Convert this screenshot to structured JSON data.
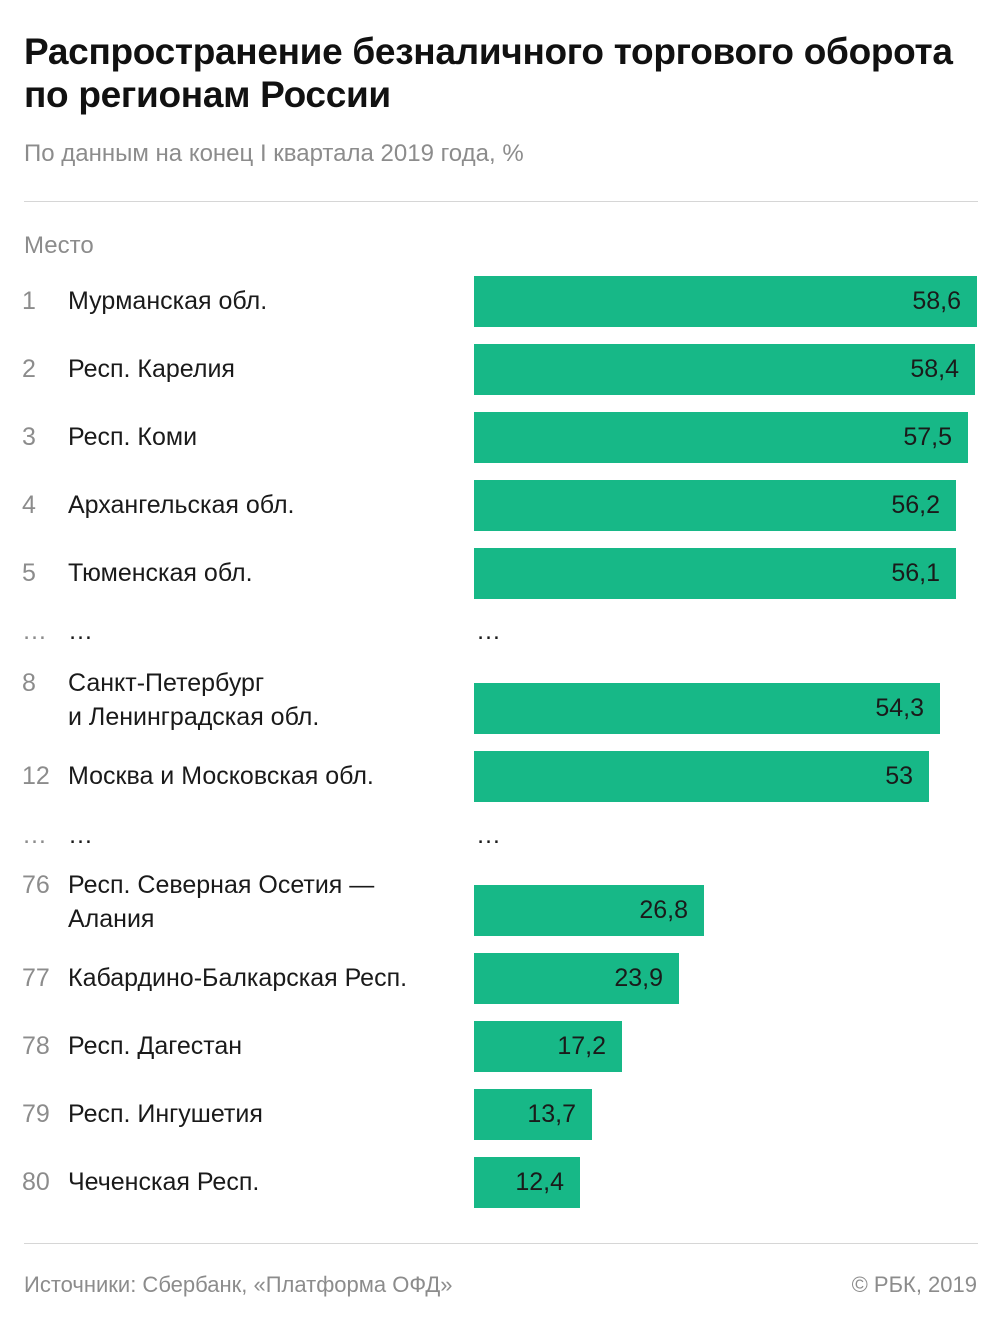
{
  "header": {
    "title": "Распространение безналичного торгового оборота по регионам России",
    "subtitle": "По данным на конец I квартала 2019 года, %",
    "column_label": "Место"
  },
  "footer": {
    "source": "Источники: Сбербанк, «Платформа ОФД»",
    "copyright": "© РБК, 2019"
  },
  "colors": {
    "bar": "#17b887",
    "muted_text": "#8c8c8c"
  },
  "chart_data": {
    "type": "bar",
    "orientation": "horizontal",
    "title": "Распространение безналичного торгового оборота по регионам России",
    "subtitle": "По данным на конец I квартала 2019 года, %",
    "categories": [
      "Мурманская обл.",
      "Респ. Карелия",
      "Респ. Коми",
      "Архангельская обл.",
      "Тюменская обл.",
      "Санкт-Петербург и Ленинградская обл.",
      "Москва и Московская обл.",
      "Респ. Северная Осетия — Алания",
      "Кабардино-Балкарская Респ.",
      "Респ. Дагестан",
      "Респ. Ингушетия",
      "Чеченская Респ."
    ],
    "rows": [
      {
        "type": "bar",
        "rank": "1",
        "lines": [
          "Мурманская обл."
        ],
        "value": 58.6,
        "label": "58,6"
      },
      {
        "type": "bar",
        "rank": "2",
        "lines": [
          "Респ. Карелия"
        ],
        "value": 58.4,
        "label": "58,4"
      },
      {
        "type": "bar",
        "rank": "3",
        "lines": [
          "Респ. Коми"
        ],
        "value": 57.5,
        "label": "57,5"
      },
      {
        "type": "bar",
        "rank": "4",
        "lines": [
          "Архангельская обл."
        ],
        "value": 56.2,
        "label": "56,2"
      },
      {
        "type": "bar",
        "rank": "5",
        "lines": [
          "Тюменская обл."
        ],
        "value": 56.1,
        "label": "56,1"
      },
      {
        "type": "gap",
        "rank": "…",
        "name": "…",
        "bar": "…"
      },
      {
        "type": "bar",
        "rank": "8",
        "lines": [
          "Санкт-Петербург",
          "и Ленинградская обл."
        ],
        "value": 54.3,
        "label": "54,3"
      },
      {
        "type": "bar",
        "rank": "12",
        "lines": [
          "Москва и Московская обл."
        ],
        "value": 53,
        "label": "53"
      },
      {
        "type": "gap",
        "rank": "…",
        "name": "…",
        "bar": "…"
      },
      {
        "type": "bar",
        "rank": "76",
        "lines": [
          "Респ. Северная Осетия —",
          "Алания"
        ],
        "value": 26.8,
        "label": "26,8"
      },
      {
        "type": "bar",
        "rank": "77",
        "lines": [
          "Кабардино-Балкарская Респ."
        ],
        "value": 23.9,
        "label": "23,9"
      },
      {
        "type": "bar",
        "rank": "78",
        "lines": [
          "Респ. Дагестан"
        ],
        "value": 17.2,
        "label": "17,2"
      },
      {
        "type": "bar",
        "rank": "79",
        "lines": [
          "Респ. Ингушетия"
        ],
        "value": 13.7,
        "label": "13,7"
      },
      {
        "type": "bar",
        "rank": "80",
        "lines": [
          "Чеченская Респ."
        ],
        "value": 12.4,
        "label": "12,4"
      }
    ],
    "xlim": [
      0,
      58.6
    ],
    "grid": false,
    "legend": "none"
  }
}
